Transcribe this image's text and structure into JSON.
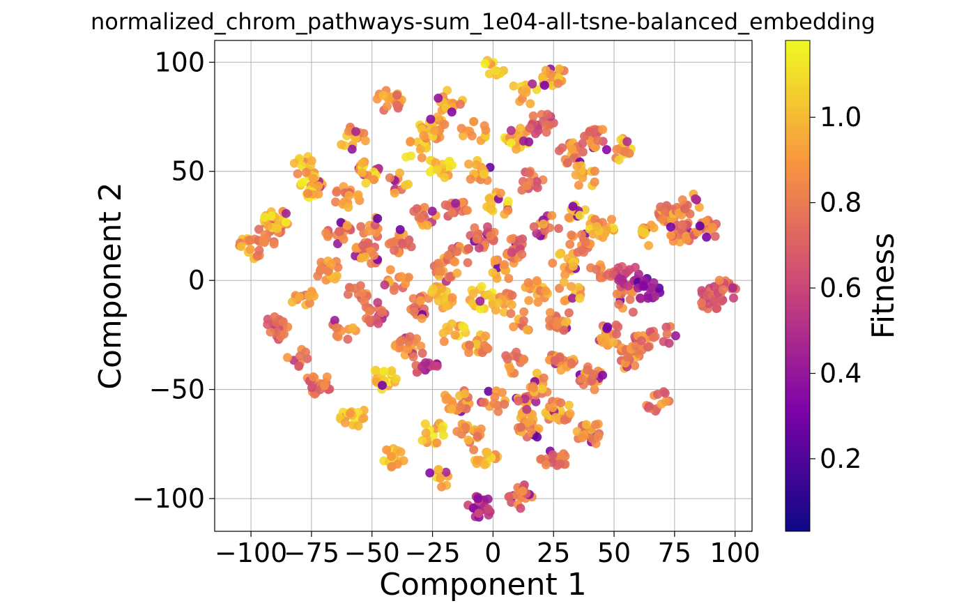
{
  "chart_data": {
    "type": "scatter",
    "title": "normalized_chrom_pathways-sum_1e04-all-tsne-balanced_embedding",
    "xlabel": "Component 1",
    "ylabel": "Component 2",
    "xlim": [
      -115,
      107
    ],
    "ylim": [
      -115,
      110
    ],
    "xticks": [
      -100,
      -75,
      -50,
      -25,
      0,
      25,
      50,
      75,
      100
    ],
    "xtick_labels": [
      "−100",
      "−75",
      "−50",
      "−25",
      "0",
      "25",
      "50",
      "75",
      "100"
    ],
    "yticks": [
      -100,
      -50,
      0,
      50,
      100
    ],
    "ytick_labels": [
      "−100",
      "−50",
      "0",
      "50",
      "100"
    ],
    "grid": true,
    "colorbar": {
      "label": "Fitness",
      "colormap": "plasma",
      "range": [
        0.03,
        1.18
      ],
      "ticks": [
        0.2,
        0.4,
        0.6,
        0.8,
        1.0
      ],
      "tick_labels": [
        "0.2",
        "0.4",
        "0.6",
        "0.8",
        "1.0"
      ]
    },
    "clusters": [
      {
        "x": -100,
        "y": 15,
        "fitness": 0.9
      },
      {
        "x": -92,
        "y": 22,
        "fitness": 0.8
      },
      {
        "x": -90,
        "y": 28,
        "fitness": 1.0
      },
      {
        "x": -78,
        "y": 52,
        "fitness": 0.95
      },
      {
        "x": -75,
        "y": 43,
        "fitness": 1.0
      },
      {
        "x": -78,
        "y": -8,
        "fitness": 0.85
      },
      {
        "x": -80,
        "y": -35,
        "fitness": 0.8
      },
      {
        "x": -90,
        "y": -22,
        "fitness": 0.7
      },
      {
        "x": -72,
        "y": -47,
        "fitness": 0.75
      },
      {
        "x": -68,
        "y": 5,
        "fitness": 0.9
      },
      {
        "x": -64,
        "y": 22,
        "fitness": 0.8
      },
      {
        "x": -60,
        "y": 38,
        "fitness": 0.85
      },
      {
        "x": -58,
        "y": 65,
        "fitness": 0.9
      },
      {
        "x": -62,
        "y": -22,
        "fitness": 0.85
      },
      {
        "x": -58,
        "y": -62,
        "fitness": 1.0
      },
      {
        "x": -55,
        "y": -5,
        "fitness": 0.8
      },
      {
        "x": -52,
        "y": 12,
        "fitness": 0.85
      },
      {
        "x": -50,
        "y": 25,
        "fitness": 0.8
      },
      {
        "x": -52,
        "y": 50,
        "fitness": 1.0
      },
      {
        "x": -48,
        "y": -15,
        "fitness": 0.7
      },
      {
        "x": -45,
        "y": -45,
        "fitness": 1.0
      },
      {
        "x": -42,
        "y": -82,
        "fitness": 1.0
      },
      {
        "x": -43,
        "y": 82,
        "fitness": 0.85
      },
      {
        "x": -40,
        "y": 45,
        "fitness": 0.9
      },
      {
        "x": -40,
        "y": 0,
        "fitness": 0.85
      },
      {
        "x": -38,
        "y": 18,
        "fitness": 0.8
      },
      {
        "x": -35,
        "y": -30,
        "fitness": 0.85
      },
      {
        "x": -32,
        "y": 60,
        "fitness": 1.0
      },
      {
        "x": -30,
        "y": -12,
        "fitness": 0.8
      },
      {
        "x": -28,
        "y": 30,
        "fitness": 0.85
      },
      {
        "x": -28,
        "y": -38,
        "fitness": 0.6
      },
      {
        "x": -25,
        "y": 70,
        "fitness": 0.95
      },
      {
        "x": -25,
        "y": -70,
        "fitness": 1.0
      },
      {
        "x": -23,
        "y": -92,
        "fitness": 0.95
      },
      {
        "x": -22,
        "y": -8,
        "fitness": 0.95
      },
      {
        "x": -22,
        "y": 52,
        "fitness": 1.0
      },
      {
        "x": -20,
        "y": 5,
        "fitness": 0.85
      },
      {
        "x": -18,
        "y": 82,
        "fitness": 0.9
      },
      {
        "x": -16,
        "y": -25,
        "fitness": 1.0
      },
      {
        "x": -15,
        "y": -55,
        "fitness": 0.85
      },
      {
        "x": -15,
        "y": 32,
        "fitness": 0.8
      },
      {
        "x": -14,
        "y": 12,
        "fitness": 0.8
      },
      {
        "x": -10,
        "y": -70,
        "fitness": 0.9
      },
      {
        "x": -8,
        "y": 68,
        "fitness": 1.0
      },
      {
        "x": -6,
        "y": 50,
        "fitness": 0.95
      },
      {
        "x": -6,
        "y": -30,
        "fitness": 0.9
      },
      {
        "x": -5,
        "y": -8,
        "fitness": 1.0
      },
      {
        "x": -5,
        "y": -104,
        "fitness": 0.5
      },
      {
        "x": -4,
        "y": 20,
        "fitness": 0.7
      },
      {
        "x": -3,
        "y": -80,
        "fitness": 0.95
      },
      {
        "x": 0,
        "y": 97,
        "fitness": 1.0
      },
      {
        "x": 0,
        "y": -55,
        "fitness": 0.9
      },
      {
        "x": 2,
        "y": 35,
        "fitness": 1.0
      },
      {
        "x": 4,
        "y": 5,
        "fitness": 0.95
      },
      {
        "x": 5,
        "y": -10,
        "fitness": 0.9
      },
      {
        "x": 8,
        "y": -38,
        "fitness": 0.85
      },
      {
        "x": 10,
        "y": 65,
        "fitness": 1.0
      },
      {
        "x": 10,
        "y": 15,
        "fitness": 0.75
      },
      {
        "x": 12,
        "y": -18,
        "fitness": 0.85
      },
      {
        "x": 12,
        "y": -99,
        "fitness": 0.75
      },
      {
        "x": 13,
        "y": -58,
        "fitness": 0.85
      },
      {
        "x": 13,
        "y": 86,
        "fitness": 0.95
      },
      {
        "x": 15,
        "y": -68,
        "fitness": 0.85
      },
      {
        "x": 16,
        "y": 45,
        "fitness": 0.75
      },
      {
        "x": 18,
        "y": -48,
        "fitness": 0.9
      },
      {
        "x": 18,
        "y": -5,
        "fitness": 0.9
      },
      {
        "x": 20,
        "y": 72,
        "fitness": 0.7
      },
      {
        "x": 22,
        "y": 25,
        "fitness": 0.85
      },
      {
        "x": 25,
        "y": 93,
        "fitness": 0.9
      },
      {
        "x": 25,
        "y": -83,
        "fitness": 0.8
      },
      {
        "x": 27,
        "y": -60,
        "fitness": 0.9
      },
      {
        "x": 28,
        "y": -18,
        "fitness": 0.85
      },
      {
        "x": 28,
        "y": -38,
        "fitness": 0.85
      },
      {
        "x": 30,
        "y": 8,
        "fitness": 0.95
      },
      {
        "x": 32,
        "y": 58,
        "fitness": 0.85
      },
      {
        "x": 32,
        "y": -5,
        "fitness": 0.9
      },
      {
        "x": 34,
        "y": 30,
        "fitness": 0.95
      },
      {
        "x": 37,
        "y": 18,
        "fitness": 0.8
      },
      {
        "x": 38,
        "y": 48,
        "fitness": 0.95
      },
      {
        "x": 40,
        "y": -45,
        "fitness": 0.85
      },
      {
        "x": 40,
        "y": -70,
        "fitness": 0.85
      },
      {
        "x": 42,
        "y": 65,
        "fitness": 0.8
      },
      {
        "x": 45,
        "y": 25,
        "fitness": 0.95
      },
      {
        "x": 45,
        "y": 5,
        "fitness": 0.8
      },
      {
        "x": 48,
        "y": -25,
        "fitness": 0.85
      },
      {
        "x": 52,
        "y": 60,
        "fitness": 0.95
      },
      {
        "x": 55,
        "y": -35,
        "fitness": 0.85
      },
      {
        "x": 55,
        "y": -10,
        "fitness": 0.8
      },
      {
        "x": 55,
        "y": 2,
        "fitness": 0.6
      },
      {
        "x": 62,
        "y": -30,
        "fitness": 0.8
      },
      {
        "x": 65,
        "y": 20,
        "fitness": 0.95
      },
      {
        "x": 64,
        "y": -4,
        "fitness": 0.35
      },
      {
        "x": 68,
        "y": -55,
        "fitness": 0.8
      },
      {
        "x": 70,
        "y": -25,
        "fitness": 0.7
      },
      {
        "x": 72,
        "y": 30,
        "fitness": 0.85
      },
      {
        "x": 78,
        "y": 22,
        "fitness": 0.8
      },
      {
        "x": 80,
        "y": 35,
        "fitness": 0.85
      },
      {
        "x": 88,
        "y": 23,
        "fitness": 0.8
      },
      {
        "x": 90,
        "y": -8,
        "fitness": 0.7
      },
      {
        "x": 95,
        "y": -5,
        "fitness": 0.7
      }
    ]
  }
}
